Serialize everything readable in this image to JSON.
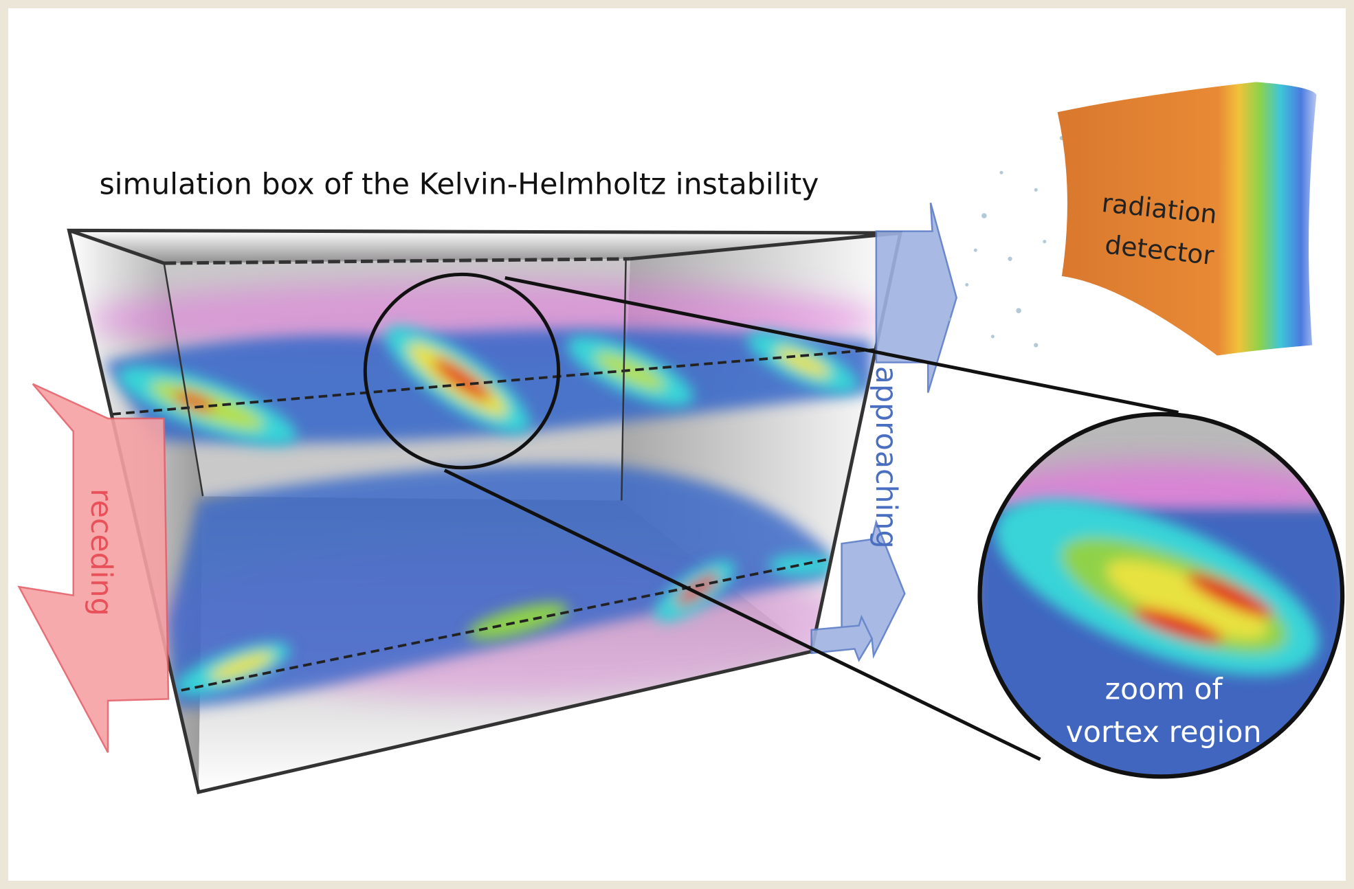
{
  "title": "simulation box of the Kelvin-Helmholtz instability",
  "detector_label": [
    "radiation",
    "detector"
  ],
  "arrows": {
    "approaching": "approaching",
    "receding": "receding"
  },
  "zoom_label": [
    "zoom of",
    "vortex region"
  ]
}
